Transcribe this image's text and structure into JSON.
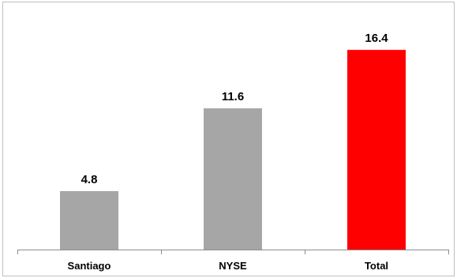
{
  "chart_data": {
    "type": "bar",
    "title": "",
    "xlabel": "",
    "ylabel": "",
    "categories": [
      "Santiago",
      "NYSE",
      "Total"
    ],
    "values": [
      4.8,
      11.6,
      16.4
    ],
    "value_labels": [
      "4.8",
      "11.6",
      "16.4"
    ],
    "ylim": [
      0,
      19.2
    ],
    "grid": false,
    "legend": "none",
    "colors": [
      "#a6a6a6",
      "#a6a6a6",
      "#ff0000"
    ]
  }
}
